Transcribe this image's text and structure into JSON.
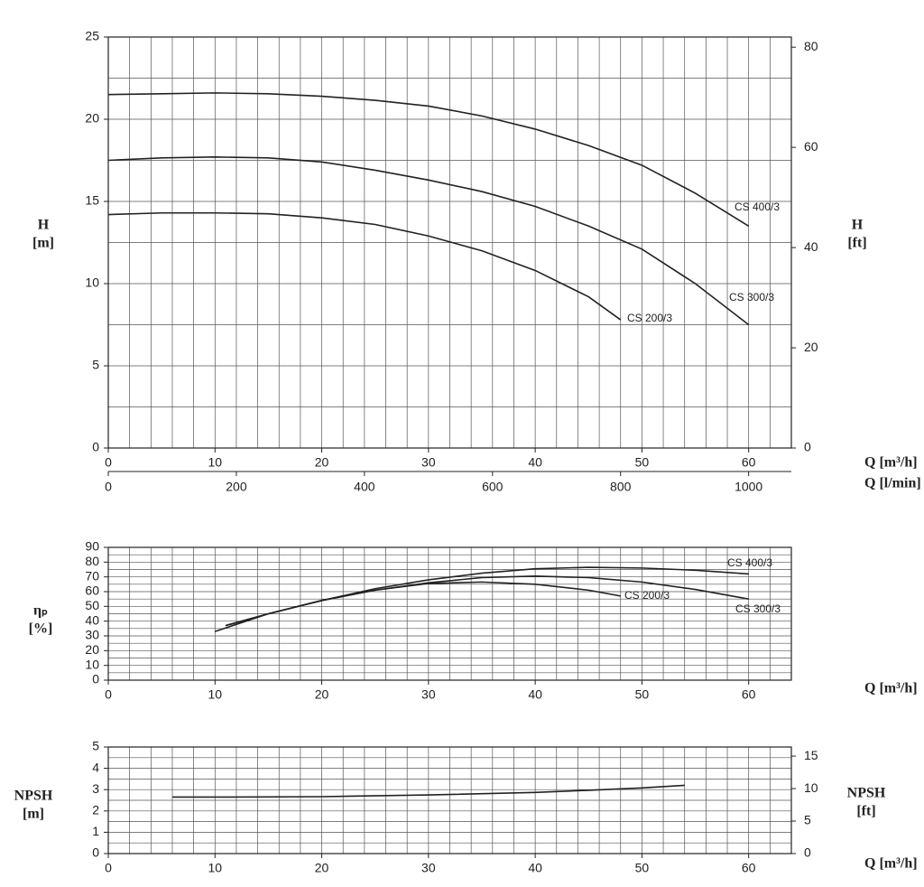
{
  "chart_data": [
    {
      "type": "line",
      "ylabel": [
        "H",
        "[m]"
      ],
      "y2label": [
        "H",
        "[ft]"
      ],
      "xlabel": "Q [m³/h]",
      "x2label": "Q [l/min]",
      "xlim": [
        0,
        64
      ],
      "xticks": [
        0,
        10,
        20,
        30,
        40,
        50,
        60
      ],
      "x2lim": [
        0,
        1066.7
      ],
      "x2ticks": [
        0,
        200,
        400,
        600,
        800,
        1000
      ],
      "ylim": [
        0,
        25
      ],
      "yticks": [
        0,
        5,
        10,
        15,
        20,
        25
      ],
      "y2lim": [
        0,
        82.02
      ],
      "y2ticks": [
        0,
        20,
        40,
        60,
        80
      ],
      "grid": true,
      "grid_step": {
        "x": 2,
        "y": 2.5
      },
      "series": [
        {
          "name": "CS 400/3",
          "color": "#222",
          "x": [
            0,
            5,
            10,
            15,
            20,
            25,
            30,
            35,
            40,
            45,
            50,
            55,
            60
          ],
          "values": [
            21.5,
            21.55,
            21.6,
            21.55,
            21.4,
            21.15,
            20.8,
            20.2,
            19.4,
            18.4,
            17.2,
            15.5,
            13.5
          ]
        },
        {
          "name": "CS 300/3",
          "color": "#222",
          "x": [
            0,
            5,
            10,
            15,
            20,
            25,
            30,
            35,
            40,
            45,
            50,
            55,
            60
          ],
          "values": [
            17.5,
            17.65,
            17.7,
            17.65,
            17.4,
            16.9,
            16.3,
            15.6,
            14.7,
            13.5,
            12.1,
            10.0,
            7.5
          ]
        },
        {
          "name": "CS 200/3",
          "color": "#222",
          "x": [
            0,
            5,
            10,
            15,
            20,
            25,
            30,
            35,
            40,
            45,
            48
          ],
          "values": [
            14.2,
            14.3,
            14.3,
            14.25,
            14.0,
            13.6,
            12.9,
            12.0,
            10.8,
            9.2,
            7.8
          ]
        }
      ]
    },
    {
      "type": "line",
      "ylabel": [
        "ηₚ",
        "[%]"
      ],
      "xlabel": "Q [m³/h]",
      "xlim": [
        0,
        64
      ],
      "xticks": [
        0,
        10,
        20,
        30,
        40,
        50,
        60
      ],
      "ylim": [
        0,
        90
      ],
      "yticks": [
        0,
        10,
        20,
        30,
        40,
        50,
        60,
        70,
        80,
        90
      ],
      "grid": true,
      "grid_step": {
        "x": 2,
        "y": 5
      },
      "series": [
        {
          "name": "CS 400/3",
          "color": "#222",
          "x": [
            11,
            15,
            20,
            25,
            30,
            35,
            40,
            45,
            50,
            55,
            60
          ],
          "values": [
            37,
            45,
            54,
            62,
            68,
            72.5,
            75.5,
            76.5,
            76,
            74.5,
            72
          ]
        },
        {
          "name": "CS 300/3",
          "color": "#222",
          "x": [
            10,
            15,
            20,
            25,
            30,
            35,
            40,
            45,
            50,
            55,
            60
          ],
          "values": [
            33,
            45,
            54,
            61,
            66,
            69.5,
            70.5,
            69.5,
            66.5,
            61.5,
            55
          ]
        },
        {
          "name": "CS 200/3",
          "color": "#222",
          "x": [
            11,
            15,
            20,
            25,
            30,
            35,
            40,
            45,
            48
          ],
          "values": [
            37,
            45,
            54,
            61,
            65.5,
            66.5,
            65,
            61,
            57
          ]
        }
      ]
    },
    {
      "type": "line",
      "ylabel": [
        "NPSH",
        "[m]"
      ],
      "y2label": [
        "NPSH",
        "[ft]"
      ],
      "xlabel": "Q [m³/h]",
      "xlim": [
        0,
        64
      ],
      "xticks": [
        0,
        10,
        20,
        30,
        40,
        50,
        60
      ],
      "ylim": [
        0,
        5
      ],
      "yticks": [
        0,
        1,
        2,
        3,
        4,
        5
      ],
      "y2lim": [
        0,
        16.4
      ],
      "y2ticks": [
        0,
        5,
        10,
        15
      ],
      "grid": true,
      "grid_step": {
        "x": 2,
        "y": 0.5
      },
      "series": [
        {
          "color": "#222",
          "x": [
            6,
            10,
            20,
            30,
            40,
            45,
            50,
            54
          ],
          "values": [
            2.65,
            2.65,
            2.67,
            2.75,
            2.87,
            2.97,
            3.08,
            3.2
          ]
        }
      ]
    }
  ]
}
